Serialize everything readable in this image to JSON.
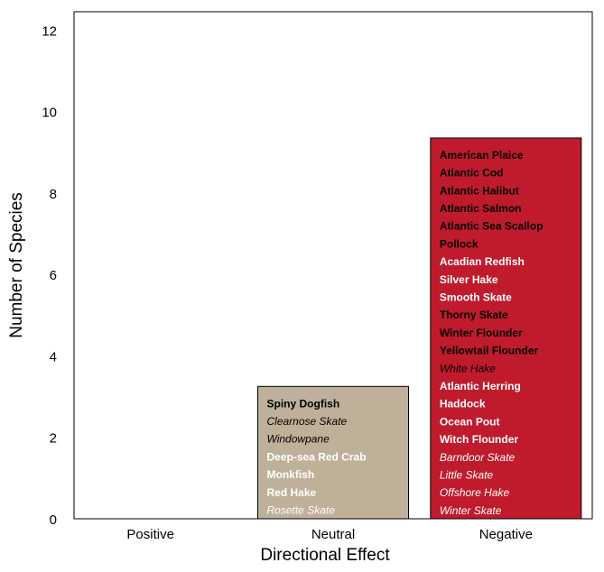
{
  "chart_data": {
    "type": "bar",
    "categories": [
      "Positive",
      "Neutral",
      "Negative"
    ],
    "values": [
      0,
      3.25,
      9.35
    ],
    "xlabel": "Directional Effect",
    "ylabel": "Number of Species",
    "ylim": [
      0,
      12.45
    ],
    "yticks": [
      0,
      2,
      4,
      6,
      8,
      10,
      12
    ],
    "grid": false,
    "legend": "none",
    "bar_colors": [
      "#ffffff",
      "#bfb09a",
      "#bf1b2c"
    ],
    "bar_species": [
      [],
      [
        {
          "name": "Spiny Dogfish",
          "bold": true,
          "italic": false,
          "color": "#000000"
        },
        {
          "name": "Clearnose Skate",
          "bold": false,
          "italic": true,
          "color": "#000000"
        },
        {
          "name": "Windowpane",
          "bold": false,
          "italic": true,
          "color": "#000000"
        },
        {
          "name": "Deep-sea Red Crab",
          "bold": true,
          "italic": false,
          "color": "#ffffff"
        },
        {
          "name": "Monkfish",
          "bold": true,
          "italic": false,
          "color": "#ffffff"
        },
        {
          "name": "Red Hake",
          "bold": true,
          "italic": false,
          "color": "#ffffff"
        },
        {
          "name": "Rosette Skate",
          "bold": false,
          "italic": true,
          "color": "#ffffff"
        }
      ],
      [
        {
          "name": "American Plaice",
          "bold": true,
          "italic": false,
          "color": "#000000"
        },
        {
          "name": "Atlantic Cod",
          "bold": true,
          "italic": false,
          "color": "#000000"
        },
        {
          "name": "Atlantic Halibut",
          "bold": true,
          "italic": false,
          "color": "#000000"
        },
        {
          "name": "Atlantic Salmon",
          "bold": true,
          "italic": false,
          "color": "#000000"
        },
        {
          "name": "Atlantic Sea Scallop",
          "bold": true,
          "italic": false,
          "color": "#000000"
        },
        {
          "name": "Pollock",
          "bold": true,
          "italic": false,
          "color": "#000000"
        },
        {
          "name": "Acadian Redfish",
          "bold": true,
          "italic": false,
          "color": "#ffffff"
        },
        {
          "name": "Silver Hake",
          "bold": true,
          "italic": false,
          "color": "#ffffff"
        },
        {
          "name": "Smooth Skate",
          "bold": true,
          "italic": false,
          "color": "#ffffff"
        },
        {
          "name": "Thorny Skate",
          "bold": true,
          "italic": false,
          "color": "#000000"
        },
        {
          "name": "Winter Flounder",
          "bold": true,
          "italic": false,
          "color": "#000000"
        },
        {
          "name": "Yellowtail Flounder",
          "bold": true,
          "italic": false,
          "color": "#000000"
        },
        {
          "name": "White Hake",
          "bold": false,
          "italic": true,
          "color": "#000000"
        },
        {
          "name": "Atlantic Herring",
          "bold": true,
          "italic": false,
          "color": "#ffffff"
        },
        {
          "name": "Haddock",
          "bold": true,
          "italic": false,
          "color": "#ffffff"
        },
        {
          "name": "Ocean Pout",
          "bold": true,
          "italic": false,
          "color": "#ffffff"
        },
        {
          "name": "Witch Flounder",
          "bold": true,
          "italic": false,
          "color": "#ffffff"
        },
        {
          "name": "Barndoor Skate",
          "bold": false,
          "italic": true,
          "color": "#ffffff"
        },
        {
          "name": "Little Skate",
          "bold": false,
          "italic": true,
          "color": "#ffffff"
        },
        {
          "name": "Offshore Hake",
          "bold": false,
          "italic": true,
          "color": "#ffffff"
        },
        {
          "name": "Winter Skate",
          "bold": false,
          "italic": true,
          "color": "#ffffff"
        }
      ]
    ]
  }
}
